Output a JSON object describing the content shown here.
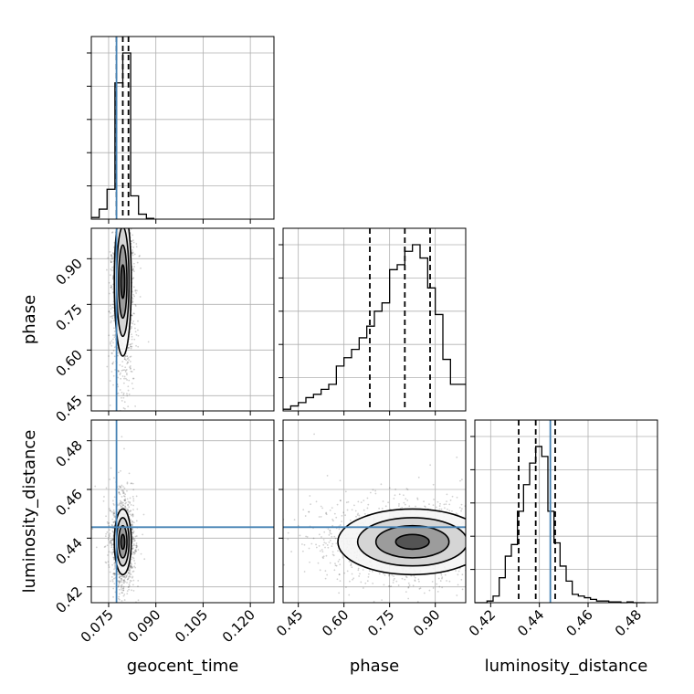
{
  "chart_data": {
    "type": "corner",
    "parameters": [
      "geocent_time",
      "phase",
      "luminosity_distance"
    ],
    "truths": {
      "geocent_time": 0.0775,
      "phase": null,
      "luminosity_distance": 0.4445
    },
    "truth_color": "#4682b4",
    "ranges": {
      "geocent_time": [
        0.0695,
        0.1275
      ],
      "phase": [
        0.4,
        1.0
      ],
      "luminosity_distance": [
        0.4135,
        0.4885
      ]
    },
    "ticks": {
      "geocent_time": {
        "values": [
          0.075,
          0.09,
          0.105,
          0.12
        ],
        "labels": [
          "0.075",
          "0.090",
          "0.105",
          "0.120"
        ]
      },
      "phase": {
        "values": [
          0.45,
          0.6,
          0.75,
          0.9
        ],
        "labels": [
          "0.45",
          "0.60",
          "0.75",
          "0.90"
        ]
      },
      "luminosity_distance": {
        "values": [
          0.42,
          0.44,
          0.46,
          0.48
        ],
        "labels": [
          "0.42",
          "0.44",
          "0.46",
          "0.48"
        ]
      }
    },
    "grid": true,
    "quantiles": {
      "geocent_time": [
        0.0775,
        0.0795,
        0.0813
      ],
      "phase": [
        0.685,
        0.8,
        0.883
      ],
      "luminosity_distance": [
        0.4315,
        0.4385,
        0.4465
      ]
    },
    "histograms": {
      "geocent_time": {
        "edges": [
          0.0695,
          0.072,
          0.0745,
          0.077,
          0.0795,
          0.082,
          0.0845,
          0.087,
          0.0895
        ],
        "counts": [
          0.01,
          0.06,
          0.18,
          0.82,
          1.0,
          0.14,
          0.03,
          0.005
        ]
      },
      "phase": {
        "edges": [
          0.4,
          0.425,
          0.45,
          0.475,
          0.5,
          0.525,
          0.55,
          0.575,
          0.6,
          0.625,
          0.65,
          0.675,
          0.7,
          0.725,
          0.75,
          0.775,
          0.8,
          0.825,
          0.85,
          0.875,
          0.9,
          0.925,
          0.95,
          0.975,
          1.0
        ],
        "counts": [
          0.01,
          0.03,
          0.05,
          0.08,
          0.1,
          0.13,
          0.16,
          0.27,
          0.32,
          0.37,
          0.44,
          0.51,
          0.6,
          0.65,
          0.85,
          0.88,
          0.96,
          1.0,
          0.92,
          0.74,
          0.58,
          0.31,
          0.16,
          0.16
        ]
      },
      "luminosity_distance": {
        "edges": [
          0.4135,
          0.416,
          0.4185,
          0.421,
          0.4235,
          0.426,
          0.4285,
          0.431,
          0.4335,
          0.436,
          0.4385,
          0.441,
          0.4435,
          0.446,
          0.4485,
          0.451,
          0.4535,
          0.456,
          0.4585,
          0.461,
          0.4635,
          0.466,
          0.4685,
          0.471,
          0.4735,
          0.476,
          0.4785,
          0.481,
          0.4835
        ],
        "counts": [
          0,
          0,
          0.01,
          0.04,
          0.15,
          0.28,
          0.35,
          0.55,
          0.71,
          0.84,
          0.94,
          0.88,
          0.55,
          0.36,
          0.22,
          0.13,
          0.05,
          0.04,
          0.03,
          0.02,
          0.01,
          0.01,
          0.005,
          0.005,
          0.0,
          0.005,
          0.0,
          0.0
        ]
      }
    },
    "posterior_2d": {
      "phase_vs_geocent_time": {
        "center": [
          0.0795,
          0.825
        ],
        "sigma": [
          0.0011,
          0.1
        ],
        "rho": 0.0
      },
      "luminosity_distance_vs_geocent_time": {
        "center": [
          0.0795,
          0.4385
        ],
        "sigma": [
          0.0011,
          0.0055
        ],
        "rho": 0.0
      },
      "luminosity_distance_vs_phase": {
        "center": [
          0.825,
          0.4385
        ],
        "sigma": [
          0.1,
          0.0055
        ],
        "rho": 0.0
      }
    }
  }
}
